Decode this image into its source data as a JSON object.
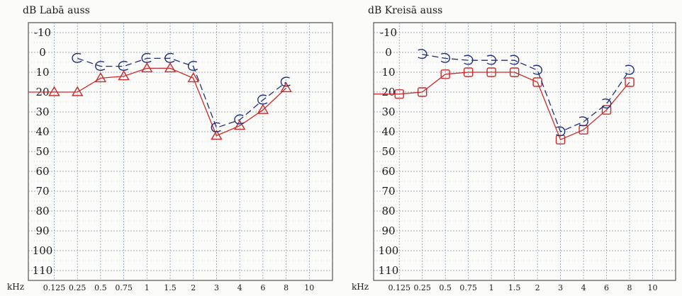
{
  "chart_data": [
    {
      "type": "line",
      "title": "dB Labā auss",
      "xlabel": "kHz",
      "x_ticks": [
        "0.125",
        "0.25",
        "0.5",
        "0.75",
        "1",
        "1.5",
        "2",
        "3",
        "4",
        "6",
        "8",
        "10"
      ],
      "y_ticks": [
        "-10",
        "0",
        "10",
        "20",
        "30",
        "40",
        "50",
        "60",
        "70",
        "80",
        "90",
        "100",
        "110"
      ],
      "ylim": [
        -15,
        115
      ],
      "y_inverted": true,
      "grid": true,
      "series": [
        {
          "marker": "triangle",
          "color": "#cc2a2a",
          "line_style": "solid",
          "x": [
            "0.125",
            "0.25",
            "0.5",
            "0.75",
            "1",
            "1.5",
            "2",
            "3",
            "4",
            "6",
            "8"
          ],
          "values": [
            20,
            20,
            13,
            12,
            8,
            8,
            13,
            42,
            37,
            29,
            18
          ]
        },
        {
          "marker": "C",
          "color": "#1f2f7a",
          "line_style": "dashed",
          "x": [
            "0.25",
            "0.5",
            "0.75",
            "1",
            "1.5",
            "2",
            "3",
            "4",
            "6",
            "8"
          ],
          "values": [
            3,
            7,
            7,
            3,
            3,
            7,
            38,
            34,
            24,
            15
          ]
        }
      ]
    },
    {
      "type": "line",
      "title": "dB Kreisā auss",
      "xlabel": "kHz",
      "x_ticks": [
        "0.125",
        "0.25",
        "0.5",
        "0.75",
        "1",
        "1.5",
        "2",
        "3",
        "4",
        "6",
        "8",
        "10"
      ],
      "y_ticks": [
        "-10",
        "0",
        "10",
        "20",
        "30",
        "40",
        "50",
        "60",
        "70",
        "80",
        "90",
        "100",
        "110"
      ],
      "ylim": [
        -15,
        115
      ],
      "y_inverted": true,
      "grid": true,
      "series": [
        {
          "marker": "square",
          "color": "#cc2a2a",
          "line_style": "solid",
          "x": [
            "0.125",
            "0.25",
            "0.5",
            "0.75",
            "1",
            "1.5",
            "2",
            "3",
            "4",
            "6",
            "8"
          ],
          "values": [
            21,
            20,
            11,
            10,
            10,
            10,
            15,
            44,
            39,
            29,
            15
          ]
        },
        {
          "marker": "bracket",
          "color": "#1f2f7a",
          "line_style": "dashed",
          "x": [
            "0.25",
            "0.5",
            "0.75",
            "1",
            "1.5",
            "2",
            "3",
            "4",
            "6",
            "8"
          ],
          "values": [
            1,
            3,
            4,
            4,
            4,
            9,
            40,
            35,
            26,
            9
          ]
        }
      ]
    }
  ]
}
